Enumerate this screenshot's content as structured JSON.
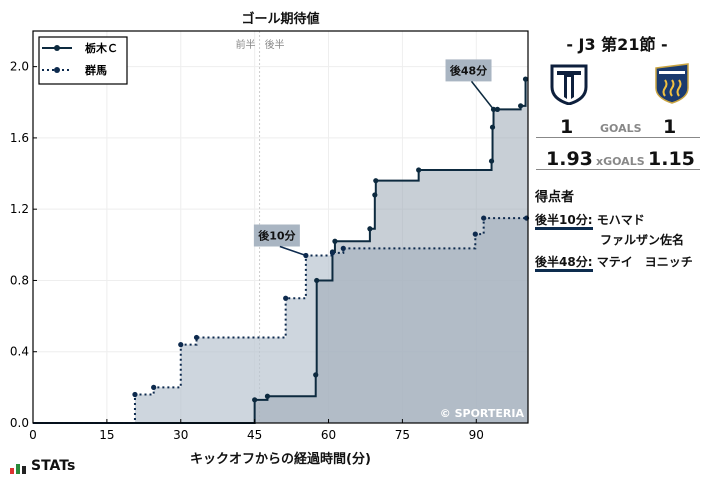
{
  "chart_data": {
    "type": "line",
    "title": "ゴール期待値",
    "xlabel": "キックオフからの経過時間(分)",
    "ylabel": "",
    "xlim": [
      0,
      100.5
    ],
    "ylim": [
      0,
      2.2
    ],
    "xticks": [
      0,
      15,
      30,
      45,
      60,
      75,
      90
    ],
    "yticks": [
      0.0,
      0.4,
      0.8,
      1.2,
      1.6,
      2.0
    ],
    "ytick_labels": [
      "0.0",
      "0.4",
      "0.8",
      "1.2",
      "1.6",
      "2.0"
    ],
    "grid": true,
    "legend": "top-left",
    "half_labels": [
      "前半",
      "後半"
    ],
    "half_line_x": 46,
    "series": [
      {
        "name": "栃木Ｃ",
        "style": "solid",
        "color": "#0d2a3f",
        "fill": "#9aa8b4",
        "x": [
          45,
          47.6,
          57.4,
          57.6,
          60.8,
          61.3,
          68.4,
          69.4,
          69.6,
          78.3,
          93.1,
          93.3,
          93.5,
          94.3,
          99,
          100
        ],
        "y": [
          0.13,
          0.15,
          0.27,
          0.8,
          0.96,
          1.02,
          1.09,
          1.28,
          1.36,
          1.42,
          1.47,
          1.66,
          1.76,
          1.76,
          1.78,
          1.93
        ]
      },
      {
        "name": "群馬",
        "style": "dotted",
        "color": "#0d2a4e",
        "fill": "#b9c4d0",
        "x": [
          20.7,
          24.5,
          30,
          33.2,
          51.3,
          55.4,
          60.8,
          63,
          89.8,
          91.5,
          100.2
        ],
        "y": [
          0.16,
          0.2,
          0.44,
          0.48,
          0.7,
          0.94,
          0.955,
          0.98,
          1.06,
          1.15,
          1.15
        ]
      }
    ],
    "annotations": [
      {
        "text": "後10分",
        "series": 1,
        "x": 55.4,
        "y": 0.94
      },
      {
        "text": "後48分",
        "series": 0,
        "x": 93.5,
        "y": 1.76
      }
    ],
    "watermark": "© SPORTERIA"
  },
  "panel": {
    "match": "-  J3 第21節  -",
    "home_goals": "1",
    "away_goals": "1",
    "goals_label": "GOALS",
    "home_xg": "1.93",
    "away_xg": "1.15",
    "xg_label": "xGOALS",
    "scorers_title": "得点者",
    "scorers": [
      {
        "time": "後半10分:",
        "name": "モハマド",
        "name2": "ファルザン佐名"
      },
      {
        "time": "後半48分:",
        "name": "マテイ　ヨニッチ"
      }
    ]
  },
  "logo": "STATs"
}
